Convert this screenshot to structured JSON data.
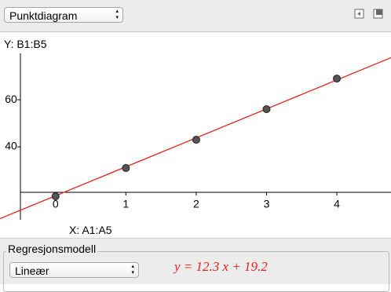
{
  "toolbar": {
    "chart_type": "Punktdiagram"
  },
  "labels": {
    "y_source": "Y:  B1:B5",
    "x_source": "X:  A1:A5"
  },
  "chart_data": {
    "type": "scatter",
    "x": [
      0,
      1,
      2,
      3,
      4
    ],
    "values": [
      19,
      31,
      43,
      56,
      69
    ],
    "color": "#555555",
    "xlim": [
      -0.79,
      4.77
    ],
    "ylim": [
      9,
      79.7
    ],
    "xticks": [
      0,
      1,
      2,
      3,
      4
    ],
    "yticks": [
      40,
      60
    ],
    "trendline": {
      "slope": 12.3,
      "intercept": 19.2,
      "color": "#e8201c"
    }
  },
  "regression": {
    "group_title": "Regresjonsmodell",
    "model": "Lineær",
    "equation": "y = 12.3 x + 19.2"
  }
}
